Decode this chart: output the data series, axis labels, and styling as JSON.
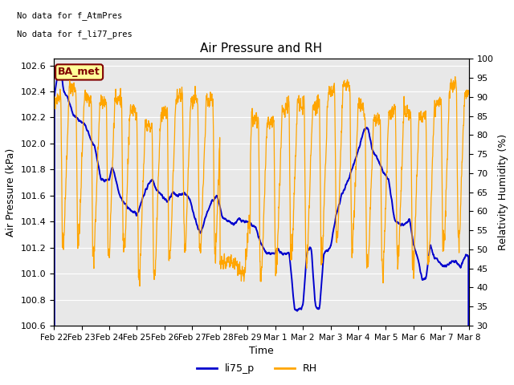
{
  "title": "Air Pressure and RH",
  "text_top_left_line1": "No data for f_AtmPres",
  "text_top_left_line2": "No data for f_li77_pres",
  "annotation_box": "BA_met",
  "xlabel": "Time",
  "ylabel_left": "Air Pressure (kPa)",
  "ylabel_right": "Relativity Humidity (%)",
  "ylim_left": [
    100.6,
    102.65
  ],
  "ylim_right": [
    30,
    100
  ],
  "yticks_left": [
    100.6,
    100.8,
    101.0,
    101.2,
    101.4,
    101.6,
    101.8,
    102.0,
    102.2,
    102.4,
    102.6
  ],
  "yticks_right": [
    30,
    35,
    40,
    45,
    50,
    55,
    60,
    65,
    70,
    75,
    80,
    85,
    90,
    95,
    100
  ],
  "xtick_labels": [
    "Feb 22",
    "Feb 23",
    "Feb 24",
    "Feb 25",
    "Feb 26",
    "Feb 27",
    "Feb 28",
    "Feb 29",
    "Mar 1",
    "Mar 2",
    "Mar 3",
    "Mar 4",
    "Mar 5",
    "Mar 6",
    "Mar 7",
    "Mar 8"
  ],
  "legend_labels": [
    "li75_p",
    "RH"
  ],
  "line_color_blue": "#0000cd",
  "line_color_orange": "#FFA500",
  "plot_bg_color": "#e8e8e8",
  "annotation_bg": "#ffff99",
  "annotation_border": "#800000",
  "annotation_text_color": "#800000",
  "grid_color": "#ffffff",
  "font_size": 9,
  "title_font_size": 11
}
